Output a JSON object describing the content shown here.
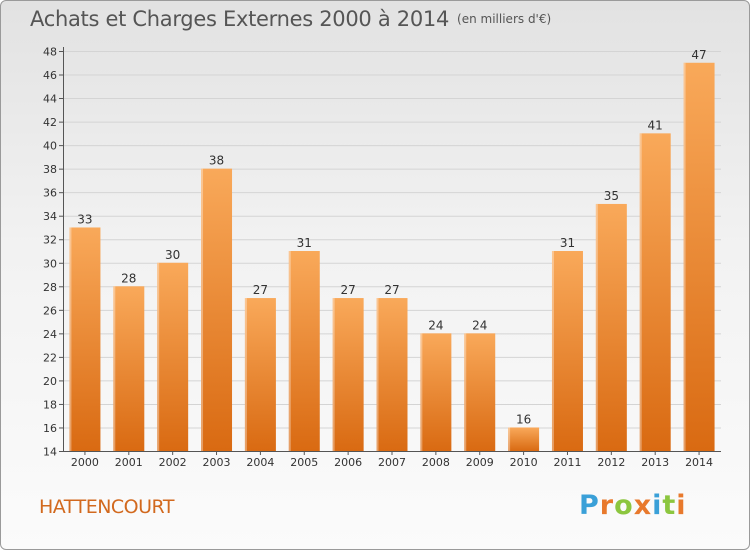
{
  "title": "Achats et Charges Externes 2000 à 2014",
  "unit": "(en milliers d'€)",
  "place": "HATTENCOURT",
  "logo": {
    "text": "Proxiti",
    "letters": [
      {
        "ch": "P",
        "color": "#3aa0d8"
      },
      {
        "ch": "r",
        "color": "#e8792c"
      },
      {
        "ch": "o",
        "color": "#8cc63f"
      },
      {
        "ch": "x",
        "color": "#e8792c"
      },
      {
        "ch": "i",
        "color": "#3aa0d8"
      },
      {
        "ch": "t",
        "color": "#8cc63f"
      },
      {
        "ch": "i",
        "color": "#e8792c"
      }
    ]
  },
  "colors": {
    "bar_top": "#f9a95a",
    "bar_bottom": "#d96a12",
    "axis_text": "#333333",
    "grid": "#d4d4d4"
  },
  "chart_data": {
    "type": "bar",
    "categories": [
      "2000",
      "2001",
      "2002",
      "2003",
      "2004",
      "2005",
      "2006",
      "2007",
      "2008",
      "2009",
      "2010",
      "2011",
      "2012",
      "2013",
      "2014"
    ],
    "values": [
      33,
      28,
      30,
      38,
      27,
      31,
      27,
      27,
      24,
      24,
      16,
      31,
      35,
      41,
      47
    ],
    "title": "Achats et Charges Externes 2000 à 2014",
    "ylabel": "",
    "xlabel": "",
    "ylim": [
      14,
      48
    ],
    "yticks": [
      14,
      16,
      18,
      20,
      22,
      24,
      26,
      28,
      30,
      32,
      34,
      36,
      38,
      40,
      42,
      44,
      46,
      48
    ],
    "grid": true
  }
}
